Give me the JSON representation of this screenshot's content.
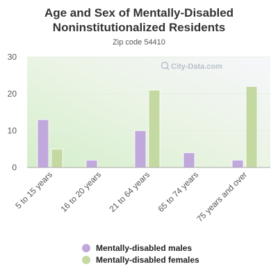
{
  "title_line1": "Age and Sex of Mentally-Disabled",
  "title_line2": "Noninstitutionalized Residents",
  "subtitle": "Zip code 54410",
  "watermark": "City-Data.com",
  "colors": {
    "males": "#c0a8dc",
    "females": "#c4d8a2"
  },
  "chart_data": {
    "type": "bar",
    "title": "Age and Sex of Mentally-Disabled Noninstitutionalized Residents",
    "subtitle": "Zip code 54410",
    "categories": [
      "5 to 15 years",
      "16 to 20 years",
      "21 to 64 years",
      "65 to 74 years",
      "75 years and over"
    ],
    "series": [
      {
        "name": "Mentally-disabled males",
        "values": [
          13,
          2,
          10,
          4,
          2
        ]
      },
      {
        "name": "Mentally-disabled females",
        "values": [
          5,
          0,
          21,
          0,
          22
        ]
      }
    ],
    "ylim": [
      0,
      30
    ],
    "yticks": [
      0,
      10,
      20,
      30
    ],
    "grid": true,
    "legend": "bottom"
  }
}
